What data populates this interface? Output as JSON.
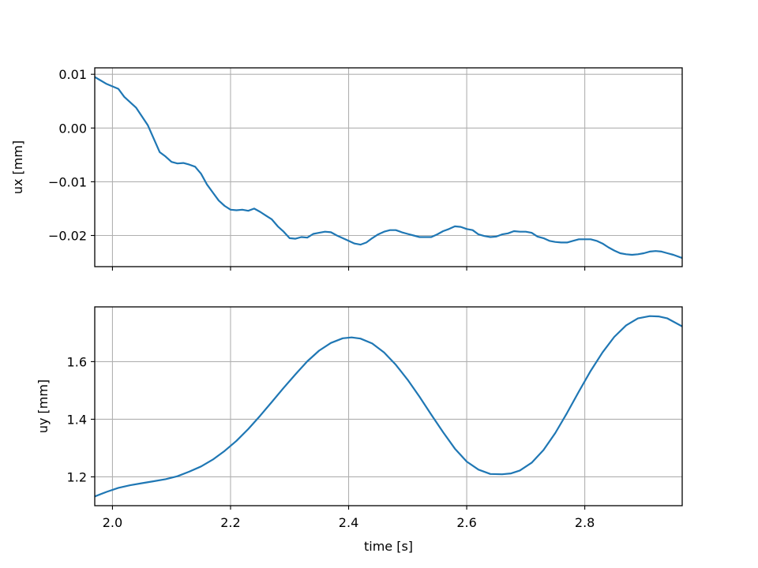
{
  "chart_data": [
    {
      "type": "line",
      "xlabel": "",
      "ylabel": "ux [mm]",
      "xlim": [
        1.97,
        2.965
      ],
      "ylim": [
        -0.0258,
        0.0112
      ],
      "grid": true,
      "x_ticks": [
        2.0,
        2.2,
        2.4,
        2.6,
        2.8
      ],
      "x_tick_labels": [],
      "y_ticks": [
        0.01,
        0.0,
        -0.01,
        -0.02
      ],
      "y_tick_labels": [
        "0.01",
        "0.00",
        "−0.01",
        "−0.02"
      ],
      "series": [
        {
          "color": "#1f77b4",
          "x": [
            1.97,
            1.99,
            2.01,
            2.02,
            2.04,
            2.06,
            2.08,
            2.09,
            2.1,
            2.11,
            2.12,
            2.13,
            2.14,
            2.15,
            2.16,
            2.17,
            2.18,
            2.19,
            2.2,
            2.21,
            2.22,
            2.23,
            2.24,
            2.25,
            2.26,
            2.27,
            2.28,
            2.29,
            2.3,
            2.31,
            2.32,
            2.33,
            2.34,
            2.35,
            2.36,
            2.37,
            2.38,
            2.39,
            2.4,
            2.41,
            2.42,
            2.43,
            2.44,
            2.45,
            2.46,
            2.47,
            2.48,
            2.49,
            2.5,
            2.51,
            2.52,
            2.53,
            2.54,
            2.55,
            2.56,
            2.57,
            2.58,
            2.59,
            2.6,
            2.61,
            2.62,
            2.63,
            2.64,
            2.65,
            2.66,
            2.67,
            2.68,
            2.69,
            2.7,
            2.71,
            2.72,
            2.73,
            2.74,
            2.75,
            2.76,
            2.77,
            2.78,
            2.79,
            2.8,
            2.81,
            2.82,
            2.83,
            2.84,
            2.85,
            2.86,
            2.87,
            2.88,
            2.89,
            2.9,
            2.91,
            2.92,
            2.93,
            2.94,
            2.95,
            2.965
          ],
          "y": [
            0.0095,
            0.0082,
            0.0073,
            0.0058,
            0.0038,
            0.0005,
            -0.0045,
            -0.0053,
            -0.0063,
            -0.0066,
            -0.0065,
            -0.0068,
            -0.0072,
            -0.0085,
            -0.0105,
            -0.012,
            -0.0135,
            -0.0145,
            -0.0152,
            -0.0153,
            -0.0152,
            -0.0154,
            -0.015,
            -0.0156,
            -0.0163,
            -0.017,
            -0.0183,
            -0.0193,
            -0.0205,
            -0.0206,
            -0.0203,
            -0.0204,
            -0.0197,
            -0.0195,
            -0.0193,
            -0.0194,
            -0.02,
            -0.0205,
            -0.021,
            -0.0215,
            -0.0217,
            -0.0213,
            -0.0205,
            -0.0198,
            -0.0193,
            -0.019,
            -0.019,
            -0.0194,
            -0.0197,
            -0.02,
            -0.0203,
            -0.0203,
            -0.0203,
            -0.0198,
            -0.0192,
            -0.0188,
            -0.0183,
            -0.0184,
            -0.0188,
            -0.019,
            -0.0198,
            -0.0201,
            -0.0203,
            -0.0202,
            -0.0198,
            -0.0196,
            -0.0192,
            -0.0193,
            -0.0193,
            -0.0195,
            -0.0202,
            -0.0205,
            -0.021,
            -0.0212,
            -0.0213,
            -0.0213,
            -0.021,
            -0.0207,
            -0.0207,
            -0.0207,
            -0.021,
            -0.0215,
            -0.0222,
            -0.0228,
            -0.0233,
            -0.0235,
            -0.0236,
            -0.0235,
            -0.0233,
            -0.023,
            -0.0229,
            -0.023,
            -0.0233,
            -0.0236,
            -0.0242
          ]
        }
      ]
    },
    {
      "type": "line",
      "xlabel": "time [s]",
      "ylabel": "uy [mm]",
      "xlim": [
        1.97,
        2.965
      ],
      "ylim": [
        1.1,
        1.79
      ],
      "grid": true,
      "x_ticks": [
        2.0,
        2.2,
        2.4,
        2.6,
        2.8
      ],
      "x_tick_labels": [
        "2.0",
        "2.2",
        "2.4",
        "2.6",
        "2.8"
      ],
      "y_ticks": [
        1.2,
        1.4,
        1.6
      ],
      "y_tick_labels": [
        "1.2",
        "1.4",
        "1.6"
      ],
      "series": [
        {
          "color": "#1f77b4",
          "x": [
            1.97,
            1.99,
            2.01,
            2.03,
            2.05,
            2.07,
            2.09,
            2.11,
            2.13,
            2.15,
            2.17,
            2.19,
            2.21,
            2.23,
            2.25,
            2.27,
            2.29,
            2.31,
            2.33,
            2.35,
            2.37,
            2.39,
            2.405,
            2.42,
            2.44,
            2.46,
            2.48,
            2.5,
            2.52,
            2.54,
            2.56,
            2.58,
            2.6,
            2.62,
            2.64,
            2.66,
            2.675,
            2.69,
            2.71,
            2.73,
            2.75,
            2.77,
            2.79,
            2.81,
            2.83,
            2.85,
            2.87,
            2.89,
            2.91,
            2.925,
            2.94,
            2.965
          ],
          "y": [
            1.132,
            1.148,
            1.162,
            1.171,
            1.178,
            1.185,
            1.192,
            1.202,
            1.218,
            1.236,
            1.26,
            1.29,
            1.325,
            1.366,
            1.412,
            1.46,
            1.509,
            1.556,
            1.601,
            1.638,
            1.665,
            1.681,
            1.684,
            1.68,
            1.663,
            1.632,
            1.589,
            1.537,
            1.478,
            1.416,
            1.355,
            1.298,
            1.253,
            1.225,
            1.21,
            1.209,
            1.212,
            1.222,
            1.249,
            1.293,
            1.352,
            1.422,
            1.496,
            1.568,
            1.632,
            1.686,
            1.726,
            1.75,
            1.758,
            1.757,
            1.75,
            1.722
          ]
        }
      ]
    }
  ]
}
